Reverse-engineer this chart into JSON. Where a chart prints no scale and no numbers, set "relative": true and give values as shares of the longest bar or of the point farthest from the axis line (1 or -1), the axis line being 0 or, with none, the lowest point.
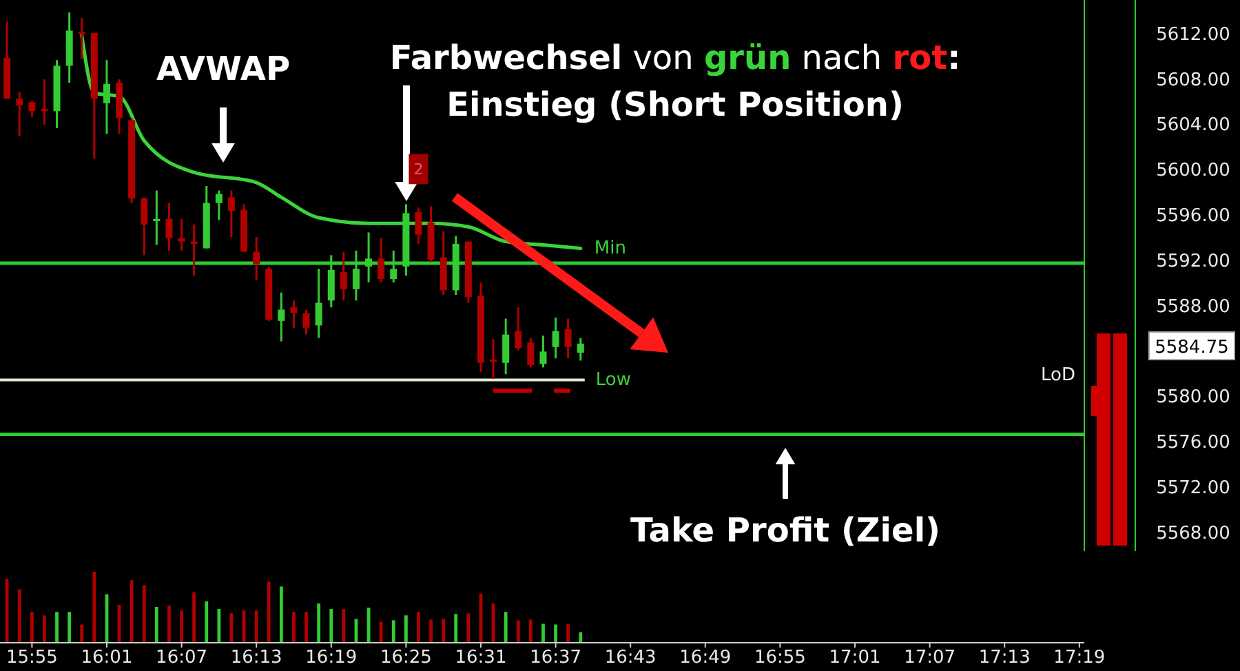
{
  "chart_data": [
    {
      "type": "candlestick",
      "tick_labels": "y",
      "xlim": [
        15.874,
        17.3233
      ],
      "ylim": [
        5566.3,
        5614.9
      ],
      "yticks": [
        {
          "value": 5568,
          "label": "5568.00"
        },
        {
          "value": 5572,
          "label": "5572.00"
        },
        {
          "value": 5576,
          "label": "5576.00"
        },
        {
          "value": 5580,
          "label": "5580.00"
        },
        {
          "value": 5588,
          "label": "5588.00"
        },
        {
          "value": 5592,
          "label": "5592.00"
        },
        {
          "value": 5596,
          "label": "5596.00"
        },
        {
          "value": 5600,
          "label": "5600.00"
        },
        {
          "value": 5604,
          "label": "5604.00"
        },
        {
          "value": 5608,
          "label": "5608.00"
        },
        {
          "value": 5612,
          "label": "5612.00"
        }
      ],
      "x": [
        15.8833,
        15.9,
        15.9167,
        15.9333,
        15.95,
        15.9667,
        15.9833,
        16,
        16.0167,
        16.0333,
        16.05,
        16.0667,
        16.0833,
        16.1,
        16.1167,
        16.1333,
        16.15,
        16.1667,
        16.1833,
        16.2,
        16.2167,
        16.2333,
        16.25,
        16.2667,
        16.2833,
        16.3,
        16.3167,
        16.3333,
        16.35,
        16.3667,
        16.3833,
        16.4,
        16.4167,
        16.4333,
        16.45,
        16.4667,
        16.4833,
        16.5,
        16.5167,
        16.5333,
        16.55,
        16.5667,
        16.5833,
        16.6,
        16.6167,
        16.6333,
        16.65
      ],
      "ohlc": [
        [
          5609.8,
          5613.0,
          5606.2,
          5606.2
        ],
        [
          5606.2,
          5606.8,
          5602.9,
          5605.6
        ],
        [
          5605.9,
          5606.0,
          5604.6,
          5605.1
        ],
        [
          5605.3,
          5607.9,
          5603.9,
          5605.1
        ],
        [
          5605.1,
          5609.6,
          5603.6,
          5609.1
        ],
        [
          5609.1,
          5613.8,
          5607.6,
          5612.2
        ],
        [
          5612.1,
          5613.3,
          5609.7,
          5611.9
        ],
        [
          5612.0,
          5612.0,
          5600.9,
          5606.2
        ],
        [
          5605.8,
          5609.6,
          5603.1,
          5607.5
        ],
        [
          5607.6,
          5607.9,
          5603.1,
          5604.5
        ],
        [
          5604.3,
          5604.5,
          5597.0,
          5597.4
        ],
        [
          5597.4,
          5597.5,
          5592.4,
          5595.1
        ],
        [
          5595.4,
          5598.1,
          5593.3,
          5595.6
        ],
        [
          5595.6,
          5597.0,
          5592.8,
          5593.9
        ],
        [
          5593.9,
          5595.6,
          5592.8,
          5593.6
        ],
        [
          5593.6,
          5595.1,
          5590.6,
          5593.4
        ],
        [
          5593.0,
          5598.5,
          5593.0,
          5597.0
        ],
        [
          5597.0,
          5598.1,
          5595.5,
          5597.8
        ],
        [
          5597.5,
          5598.1,
          5594.0,
          5596.3
        ],
        [
          5596.4,
          5596.9,
          5592.7,
          5592.7
        ],
        [
          5592.7,
          5594.0,
          5590.2,
          5591.6
        ],
        [
          5591.2,
          5591.4,
          5586.6,
          5586.7
        ],
        [
          5586.6,
          5589.1,
          5584.8,
          5587.6
        ],
        [
          5587.8,
          5588.4,
          5586.0,
          5587.3
        ],
        [
          5587.3,
          5587.6,
          5585.4,
          5586.0
        ],
        [
          5586.2,
          5591.2,
          5585.1,
          5588.2
        ],
        [
          5588.4,
          5592.4,
          5587.8,
          5591.1
        ],
        [
          5590.9,
          5592.7,
          5588.4,
          5589.4
        ],
        [
          5589.4,
          5592.8,
          5588.4,
          5591.2
        ],
        [
          5591.4,
          5594.4,
          5590.0,
          5592.1
        ],
        [
          5592.1,
          5593.9,
          5590.0,
          5590.3
        ],
        [
          5590.3,
          5592.8,
          5590.0,
          5591.2
        ],
        [
          5591.4,
          5596.9,
          5590.6,
          5596.1
        ],
        [
          5596.2,
          5596.6,
          5593.4,
          5594.2
        ],
        [
          5595.3,
          5596.7,
          5591.8,
          5592.0
        ],
        [
          5592.2,
          5594.5,
          5588.9,
          5589.3
        ],
        [
          5589.3,
          5594.1,
          5588.9,
          5593.4
        ],
        [
          5593.6,
          5593.6,
          5588.2,
          5588.7
        ],
        [
          5588.8,
          5590.0,
          5582.1,
          5582.9
        ],
        [
          5583.2,
          5585.0,
          5581.5,
          5583.0
        ],
        [
          5582.9,
          5586.8,
          5581.9,
          5585.4
        ],
        [
          5585.7,
          5587.8,
          5584.0,
          5584.2
        ],
        [
          5584.7,
          5585.1,
          5582.5,
          5582.7
        ],
        [
          5582.8,
          5585.3,
          5582.5,
          5583.9
        ],
        [
          5584.3,
          5586.9,
          5583.3,
          5585.7
        ],
        [
          5585.9,
          5586.8,
          5583.3,
          5584.3
        ],
        [
          5583.8,
          5585.1,
          5583.1,
          5584.6
        ]
      ],
      "colors": [
        "#b00000",
        "#b00000",
        "#b00000",
        "#b00000",
        "#33cc33",
        "#33cc33",
        "#b00000",
        "#b00000",
        "#33cc33",
        "#b00000",
        "#b00000",
        "#b00000",
        "#33cc33",
        "#b00000",
        "#b00000",
        "#b00000",
        "#33cc33",
        "#33cc33",
        "#b00000",
        "#b00000",
        "#b00000",
        "#b00000",
        "#33cc33",
        "#b00000",
        "#b00000",
        "#33cc33",
        "#33cc33",
        "#b00000",
        "#33cc33",
        "#33cc33",
        "#b00000",
        "#33cc33",
        "#33cc33",
        "#b00000",
        "#b00000",
        "#b00000",
        "#33cc33",
        "#b00000",
        "#b00000",
        "#b00000",
        "#33cc33",
        "#b00000",
        "#b00000",
        "#33cc33",
        "#33cc33",
        "#b00000",
        "#33cc33"
      ],
      "series": [
        {
          "name": "Min",
          "type": "line",
          "color": "#3ad43a",
          "x": [
            15.9833,
            16,
            16.0333,
            16.0667,
            16.1333,
            16.2167,
            16.25,
            16.3,
            16.3667,
            16.45,
            16.5,
            16.55,
            16.6,
            16.65
          ],
          "values": [
            5611.8,
            5606.7,
            5606.4,
            5602.5,
            5599.7,
            5598.8,
            5597.5,
            5595.7,
            5595.2,
            5595.2,
            5594.9,
            5593.6,
            5593.3,
            5593.0
          ]
        }
      ],
      "ref_lines": [
        {
          "axis": "y",
          "value": 5591.7,
          "label": null,
          "color": "#2ecc2e"
        },
        {
          "axis": "y",
          "value": 5581.4,
          "label": "Low",
          "color": "#dfe8d0"
        },
        {
          "axis": "y",
          "value": 5576.6,
          "label": null,
          "color": "#2ecc2e"
        }
      ],
      "annotations": [
        "AVWAP",
        "Farbwechsel von grün nach rot:\nEinstieg (Short Position)",
        "Take Profit (Ziel)",
        "LoD",
        {
          "text": "2",
          "x": 16.4333,
          "y": 5600.0
        },
        "5584.75"
      ]
    },
    {
      "type": "bar",
      "relative": true,
      "tick_labels": "x",
      "xlim": [
        15.874,
        17.3233
      ],
      "xticks": [
        {
          "value": 15.9167,
          "label": "15:55"
        },
        {
          "value": 16.0167,
          "label": "16:01"
        },
        {
          "value": 16.1167,
          "label": "16:07"
        },
        {
          "value": 16.2167,
          "label": "16:13"
        },
        {
          "value": 16.3167,
          "label": "16:19"
        },
        {
          "value": 16.4167,
          "label": "16:25"
        },
        {
          "value": 16.5167,
          "label": "16:31"
        },
        {
          "value": 16.6167,
          "label": "16:37"
        },
        {
          "value": 16.7167,
          "label": "16:43"
        },
        {
          "value": 16.8167,
          "label": "16:49"
        },
        {
          "value": 16.9167,
          "label": "16:55"
        },
        {
          "value": 17.0167,
          "label": "17:01"
        },
        {
          "value": 17.1167,
          "label": "17:07"
        },
        {
          "value": 17.2167,
          "label": "17:13"
        },
        {
          "value": 17.3167,
          "label": "17:19"
        }
      ],
      "x": [
        15.8833,
        15.9,
        15.9167,
        15.9333,
        15.95,
        15.9667,
        15.9833,
        16,
        16.0167,
        16.0333,
        16.05,
        16.0667,
        16.0833,
        16.1,
        16.1167,
        16.1333,
        16.15,
        16.1667,
        16.1833,
        16.2,
        16.2167,
        16.2333,
        16.25,
        16.2667,
        16.2833,
        16.3,
        16.3167,
        16.3333,
        16.35,
        16.3667,
        16.3833,
        16.4,
        16.4167,
        16.4333,
        16.45,
        16.4667,
        16.4833,
        16.5,
        16.5167,
        16.5333,
        16.55,
        16.5667,
        16.5833,
        16.6,
        16.6167,
        16.6333,
        16.65
      ],
      "values": [
        0.9,
        0.75,
        0.43,
        0.38,
        0.43,
        0.43,
        0.25,
        1,
        0.68,
        0.53,
        0.88,
        0.81,
        0.5,
        0.52,
        0.45,
        0.71,
        0.58,
        0.47,
        0.41,
        0.45,
        0.45,
        0.86,
        0.79,
        0.43,
        0.43,
        0.55,
        0.47,
        0.47,
        0.33,
        0.49,
        0.29,
        0.31,
        0.38,
        0.43,
        0.32,
        0.33,
        0.4,
        0.41,
        0.69,
        0.55,
        0.43,
        0.31,
        0.32,
        0.26,
        0.25,
        0.26,
        0.14
      ],
      "colors": [
        "#b00000",
        "#b00000",
        "#b00000",
        "#b00000",
        "#33cc33",
        "#33cc33",
        "#b00000",
        "#b00000",
        "#33cc33",
        "#b00000",
        "#b00000",
        "#b00000",
        "#33cc33",
        "#b00000",
        "#b00000",
        "#b00000",
        "#33cc33",
        "#33cc33",
        "#b00000",
        "#b00000",
        "#b00000",
        "#b00000",
        "#33cc33",
        "#b00000",
        "#b00000",
        "#33cc33",
        "#33cc33",
        "#b00000",
        "#33cc33",
        "#33cc33",
        "#b00000",
        "#33cc33",
        "#33cc33",
        "#b00000",
        "#b00000",
        "#b00000",
        "#33cc33",
        "#b00000",
        "#b00000",
        "#b00000",
        "#33cc33",
        "#b00000",
        "#b00000",
        "#33cc33",
        "#33cc33",
        "#b00000",
        "#33cc33"
      ]
    }
  ]
}
